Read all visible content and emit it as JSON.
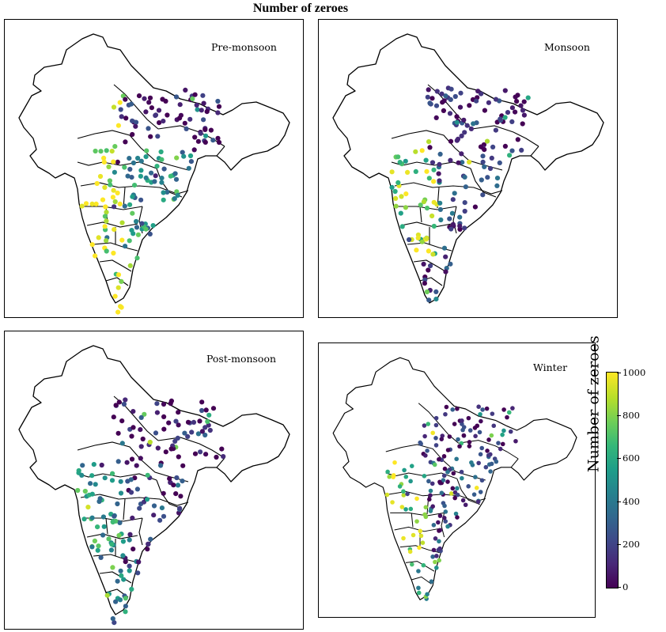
{
  "title": "Number of zeroes",
  "panels": [
    {
      "name": "pre-monsoon",
      "label": "Pre-monsoon",
      "seed": 11,
      "profile": "pre"
    },
    {
      "name": "monsoon",
      "label": "Monsoon",
      "seed": 23,
      "profile": "mon"
    },
    {
      "name": "post-monsoon",
      "label": "Post-monsoon",
      "seed": 37,
      "profile": "post"
    },
    {
      "name": "winter",
      "label": "Winter",
      "seed": 51,
      "profile": "win"
    }
  ],
  "colorbar": {
    "label": "Number of zeroes",
    "ticks": [
      "0",
      "200",
      "400",
      "600",
      "800",
      "1000"
    ],
    "min": 0,
    "max": 1000,
    "colormap": "viridis"
  }
}
